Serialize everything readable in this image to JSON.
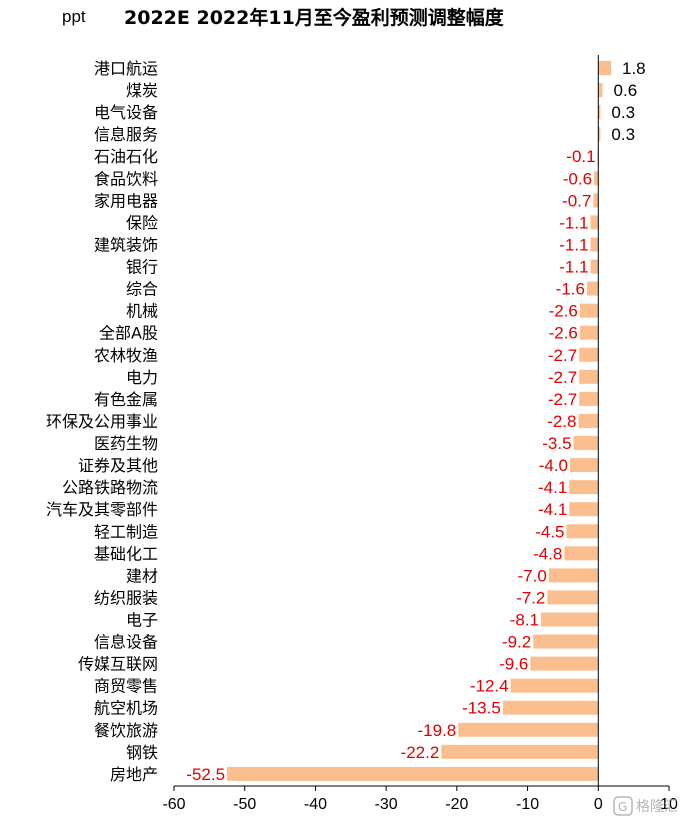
{
  "chart_data": {
    "type": "bar",
    "orientation": "horizontal",
    "title": "2022E 2022年11月至今盈利预测调整幅度",
    "unit": "ppt",
    "categories": [
      "港口航运",
      "煤炭",
      "电气设备",
      "信息服务",
      "石油石化",
      "食品饮料",
      "家用电器",
      "保险",
      "建筑装饰",
      "银行",
      "综合",
      "机械",
      "全部A股",
      "农林牧渔",
      "电力",
      "有色金属",
      "环保及公用事业",
      "医药生物",
      "证券及其他",
      "公路铁路物流",
      "汽车及其零部件",
      "轻工制造",
      "基础化工",
      "建材",
      "纺织服装",
      "电子",
      "信息设备",
      "传媒互联网",
      "商贸零售",
      "航空机场",
      "餐饮旅游",
      "钢铁",
      "房地产"
    ],
    "values": [
      1.8,
      0.6,
      0.3,
      0.3,
      -0.1,
      -0.6,
      -0.7,
      -1.1,
      -1.1,
      -1.1,
      -1.6,
      -2.6,
      -2.6,
      -2.7,
      -2.7,
      -2.7,
      -2.8,
      -3.5,
      -4.0,
      -4.1,
      -4.1,
      -4.5,
      -4.8,
      -7.0,
      -7.2,
      -8.1,
      -9.2,
      -9.6,
      -12.4,
      -13.5,
      -19.8,
      -22.2,
      -52.5
    ],
    "value_labels": [
      "1.8",
      "0.6",
      "0.3",
      "0.3",
      "-0.1",
      "-0.6",
      "-0.7",
      "-1.1",
      "-1.1",
      "-1.1",
      "-1.6",
      "-2.6",
      "-2.6",
      "-2.7",
      "-2.7",
      "-2.7",
      "-2.8",
      "-3.5",
      "-4.0",
      "-4.1",
      "-4.1",
      "-4.5",
      "-4.8",
      "-7.0",
      "-7.2",
      "-8.1",
      "-9.2",
      "-9.6",
      "-12.4",
      "-13.5",
      "-19.8",
      "-22.2",
      "-52.5"
    ],
    "xlim": [
      -60,
      10
    ],
    "xticks": [
      -60,
      -50,
      -40,
      -30,
      -20,
      -10,
      0,
      10
    ],
    "xtick_labels": [
      "-60",
      "-50",
      "-40",
      "-30",
      "-20",
      "-10",
      "0",
      "10"
    ],
    "grid": false,
    "legend": "none"
  },
  "colors": {
    "bar": "#fbbf8f",
    "positive_label": "#000000",
    "negative_label": "#e00000",
    "axis": "#000000"
  },
  "watermark": {
    "text": "格隆汇",
    "icon": "gelonghui-logo-icon"
  }
}
